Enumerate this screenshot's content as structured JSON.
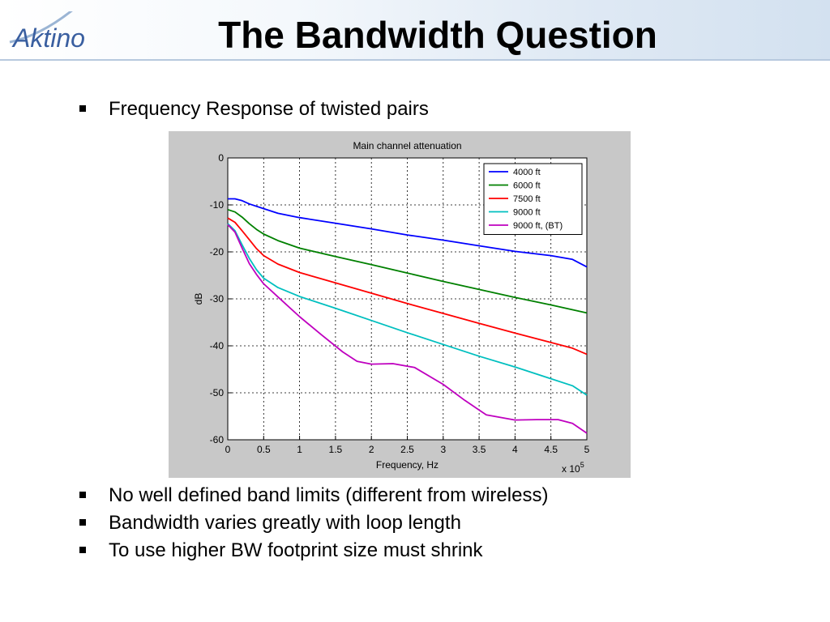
{
  "header": {
    "logo_text": "Aktino",
    "title": "The Bandwidth Question"
  },
  "bullets_top": [
    {
      "text": "Frequency Response of twisted pairs"
    }
  ],
  "bullets_bottom": [
    {
      "text": "No well defined band limits (different from wireless)"
    },
    {
      "text": "Bandwidth varies greatly with loop length"
    },
    {
      "text": "To use higher BW footprint size must shrink"
    }
  ],
  "chart_data": {
    "type": "line",
    "title": "Main channel attenuation",
    "xlabel": "Frequency, Hz",
    "ylabel": "dB",
    "x_multiplier_label": "x 10",
    "x_multiplier_exponent": "5",
    "xlim": [
      0,
      5
    ],
    "ylim": [
      -60,
      0
    ],
    "x_ticks": [
      "0",
      "0.5",
      "1",
      "1.5",
      "2",
      "2.5",
      "3",
      "3.5",
      "4",
      "4.5",
      "5"
    ],
    "y_ticks": [
      "0",
      "-10",
      "-20",
      "-30",
      "-40",
      "-50",
      "-60"
    ],
    "grid": true,
    "legend_position": "top-right",
    "series": [
      {
        "name": "4000 ft",
        "color": "#0000ff",
        "x": [
          0,
          0.1,
          0.2,
          0.3,
          0.5,
          0.7,
          1,
          1.5,
          2,
          2.5,
          3,
          3.5,
          4,
          4.5,
          4.8,
          5
        ],
        "y": [
          -8.7,
          -8.7,
          -9.1,
          -9.8,
          -10.8,
          -11.8,
          -12.7,
          -13.9,
          -15.1,
          -16.4,
          -17.5,
          -18.7,
          -19.9,
          -20.8,
          -21.6,
          -23.2
        ]
      },
      {
        "name": "6000 ft",
        "color": "#008000",
        "x": [
          0,
          0.1,
          0.2,
          0.3,
          0.4,
          0.5,
          0.7,
          1,
          1.5,
          2,
          2.5,
          3,
          3.5,
          4,
          4.5,
          5
        ],
        "y": [
          -11,
          -11.5,
          -12.6,
          -14,
          -15.2,
          -16.2,
          -17.6,
          -19.2,
          -21,
          -22.7,
          -24.5,
          -26.3,
          -28,
          -29.7,
          -31.3,
          -33
        ]
      },
      {
        "name": "7500 ft",
        "color": "#ff0000",
        "x": [
          0,
          0.1,
          0.2,
          0.3,
          0.4,
          0.5,
          0.7,
          1,
          1.5,
          2,
          2.5,
          3,
          3.5,
          4,
          4.5,
          4.8,
          5
        ],
        "y": [
          -12.8,
          -13.7,
          -15.5,
          -17.4,
          -19.3,
          -20.8,
          -22.6,
          -24.4,
          -26.6,
          -28.8,
          -31,
          -33.1,
          -35.2,
          -37.3,
          -39.3,
          -40.5,
          -41.8
        ]
      },
      {
        "name": "9000 ft",
        "color": "#00bfbf",
        "x": [
          0,
          0.1,
          0.2,
          0.3,
          0.4,
          0.5,
          0.7,
          1,
          1.5,
          2,
          2.5,
          3,
          3.5,
          4,
          4.5,
          4.8,
          5
        ],
        "y": [
          -14,
          -15.5,
          -18.5,
          -21.4,
          -23.8,
          -25.6,
          -27.6,
          -29.5,
          -32,
          -34.6,
          -37.2,
          -39.7,
          -42.2,
          -44.5,
          -47,
          -48.5,
          -50.5
        ]
      },
      {
        "name": "9000 ft, (BT)",
        "color": "#bf00bf",
        "x": [
          0,
          0.1,
          0.2,
          0.3,
          0.4,
          0.5,
          0.7,
          1,
          1.3,
          1.6,
          1.8,
          2,
          2.3,
          2.6,
          3,
          3.3,
          3.6,
          4,
          4.3,
          4.6,
          4.8,
          5
        ],
        "y": [
          -14.2,
          -15.8,
          -19.2,
          -22.5,
          -24.8,
          -26.8,
          -29.6,
          -33.8,
          -37.6,
          -41.3,
          -43.3,
          -43.9,
          -43.8,
          -44.6,
          -48.2,
          -51.6,
          -54.7,
          -55.8,
          -55.7,
          -55.7,
          -56.5,
          -58.6
        ]
      }
    ]
  }
}
